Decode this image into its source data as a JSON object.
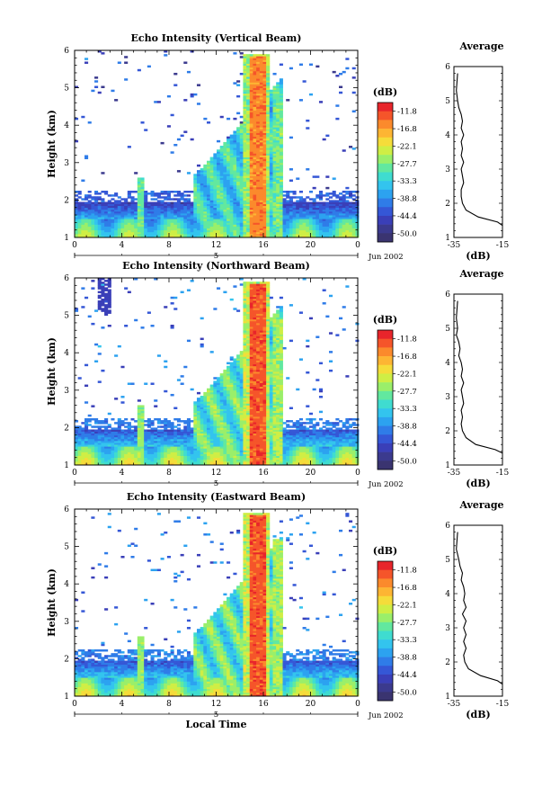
{
  "chart_data": [
    {
      "type": "heatmap",
      "title": "Echo Intensity (Vertical Beam)",
      "ylabel": "Height (km)",
      "xlabel": "",
      "xlim": [
        0,
        24
      ],
      "ylim": [
        1,
        6
      ],
      "x_ticks": [
        "0",
        "4",
        "8",
        "12",
        "16",
        "20",
        "0"
      ],
      "y_ticks": [
        "1",
        "2",
        "3",
        "4",
        "5",
        "6"
      ],
      "date_label": "Jun 2002",
      "day_label": "5",
      "colorbar": {
        "unit": "(dB)",
        "levels": [
          "-11.8",
          "-16.8",
          "-22.1",
          "-27.7",
          "-33.3",
          "-38.8",
          "-44.4",
          "-50.0"
        ],
        "min": -50.0,
        "max": -11.8
      },
      "profile": {
        "title": "Average",
        "xlabel": "(dB)",
        "x_ticks": [
          "-35",
          "-15"
        ],
        "xlim": [
          -35,
          -15
        ],
        "y_ticks": [
          "1",
          "2",
          "3",
          "4",
          "5",
          "6"
        ],
        "x": [
          -15,
          -17,
          -25,
          -30,
          -31.5,
          -32,
          -32,
          -31,
          -31.5,
          -32,
          -31,
          -32,
          -31.5,
          -32,
          -31,
          -32,
          -31.5,
          -32,
          -33,
          -33.5,
          -34,
          -33.5
        ],
        "y": [
          1.35,
          1.45,
          1.6,
          1.8,
          2.0,
          2.2,
          2.4,
          2.6,
          2.8,
          3.0,
          3.2,
          3.4,
          3.6,
          3.8,
          4.0,
          4.2,
          4.4,
          4.6,
          4.8,
          5.0,
          5.3,
          5.8
        ]
      }
    },
    {
      "type": "heatmap",
      "title": "Echo Intensity (Northward Beam)",
      "ylabel": "Height (km)",
      "xlabel": "",
      "xlim": [
        0,
        24
      ],
      "ylim": [
        1,
        6
      ],
      "x_ticks": [
        "0",
        "4",
        "8",
        "12",
        "16",
        "20",
        "0"
      ],
      "y_ticks": [
        "1",
        "2",
        "3",
        "4",
        "5",
        "6"
      ],
      "date_label": "Jun 2002",
      "day_label": "5",
      "colorbar": {
        "unit": "(dB)",
        "levels": [
          "-11.8",
          "-16.8",
          "-22.1",
          "-27.7",
          "-33.3",
          "-38.8",
          "-44.4",
          "-50.0"
        ],
        "min": -50.0,
        "max": -11.8
      },
      "profile": {
        "title": "Average",
        "xlabel": "(dB)",
        "x_ticks": [
          "-35",
          "-15"
        ],
        "xlim": [
          -35,
          -15
        ],
        "y_ticks": [
          "1",
          "2",
          "3",
          "4",
          "5",
          "6"
        ],
        "x": [
          -15,
          -18,
          -26,
          -30,
          -31.5,
          -32,
          -31.5,
          -32,
          -31,
          -31.5,
          -32,
          -31,
          -32,
          -31.5,
          -32,
          -33,
          -32.5,
          -33,
          -34,
          -33.5,
          -34,
          -33.5
        ],
        "y": [
          1.35,
          1.45,
          1.6,
          1.8,
          2.0,
          2.2,
          2.4,
          2.6,
          2.8,
          3.0,
          3.2,
          3.4,
          3.6,
          3.8,
          4.0,
          4.2,
          4.4,
          4.6,
          4.8,
          5.0,
          5.3,
          5.8
        ]
      }
    },
    {
      "type": "heatmap",
      "title": "Echo Intensity (Eastward Beam)",
      "ylabel": "Height (km)",
      "xlabel": "Local Time",
      "xlim": [
        0,
        24
      ],
      "ylim": [
        1,
        6
      ],
      "x_ticks": [
        "0",
        "4",
        "8",
        "12",
        "16",
        "20",
        "0"
      ],
      "y_ticks": [
        "1",
        "2",
        "3",
        "4",
        "5",
        "6"
      ],
      "date_label": "Jun 2002",
      "day_label": "5",
      "colorbar": {
        "unit": "(dB)",
        "levels": [
          "-11.8",
          "-16.8",
          "-22.1",
          "-27.7",
          "-33.3",
          "-38.8",
          "-44.4",
          "-50.0"
        ],
        "min": -50.0,
        "max": -11.8
      },
      "profile": {
        "title": "Average",
        "xlabel": "(dB)",
        "x_ticks": [
          "-35",
          "-15"
        ],
        "xlim": [
          -35,
          -15
        ],
        "y_ticks": [
          "1",
          "2",
          "3",
          "4",
          "5",
          "6"
        ],
        "x": [
          -15,
          -17,
          -24,
          -29,
          -30.5,
          -31,
          -30,
          -31,
          -30,
          -31,
          -30,
          -31.5,
          -30,
          -31,
          -30.5,
          -31,
          -32,
          -31.5,
          -32.5,
          -33,
          -34,
          -33.5
        ],
        "y": [
          1.35,
          1.45,
          1.6,
          1.8,
          2.0,
          2.2,
          2.4,
          2.6,
          2.8,
          3.0,
          3.2,
          3.4,
          3.6,
          3.8,
          4.0,
          4.2,
          4.4,
          4.6,
          4.8,
          5.0,
          5.3,
          5.8
        ]
      }
    }
  ]
}
